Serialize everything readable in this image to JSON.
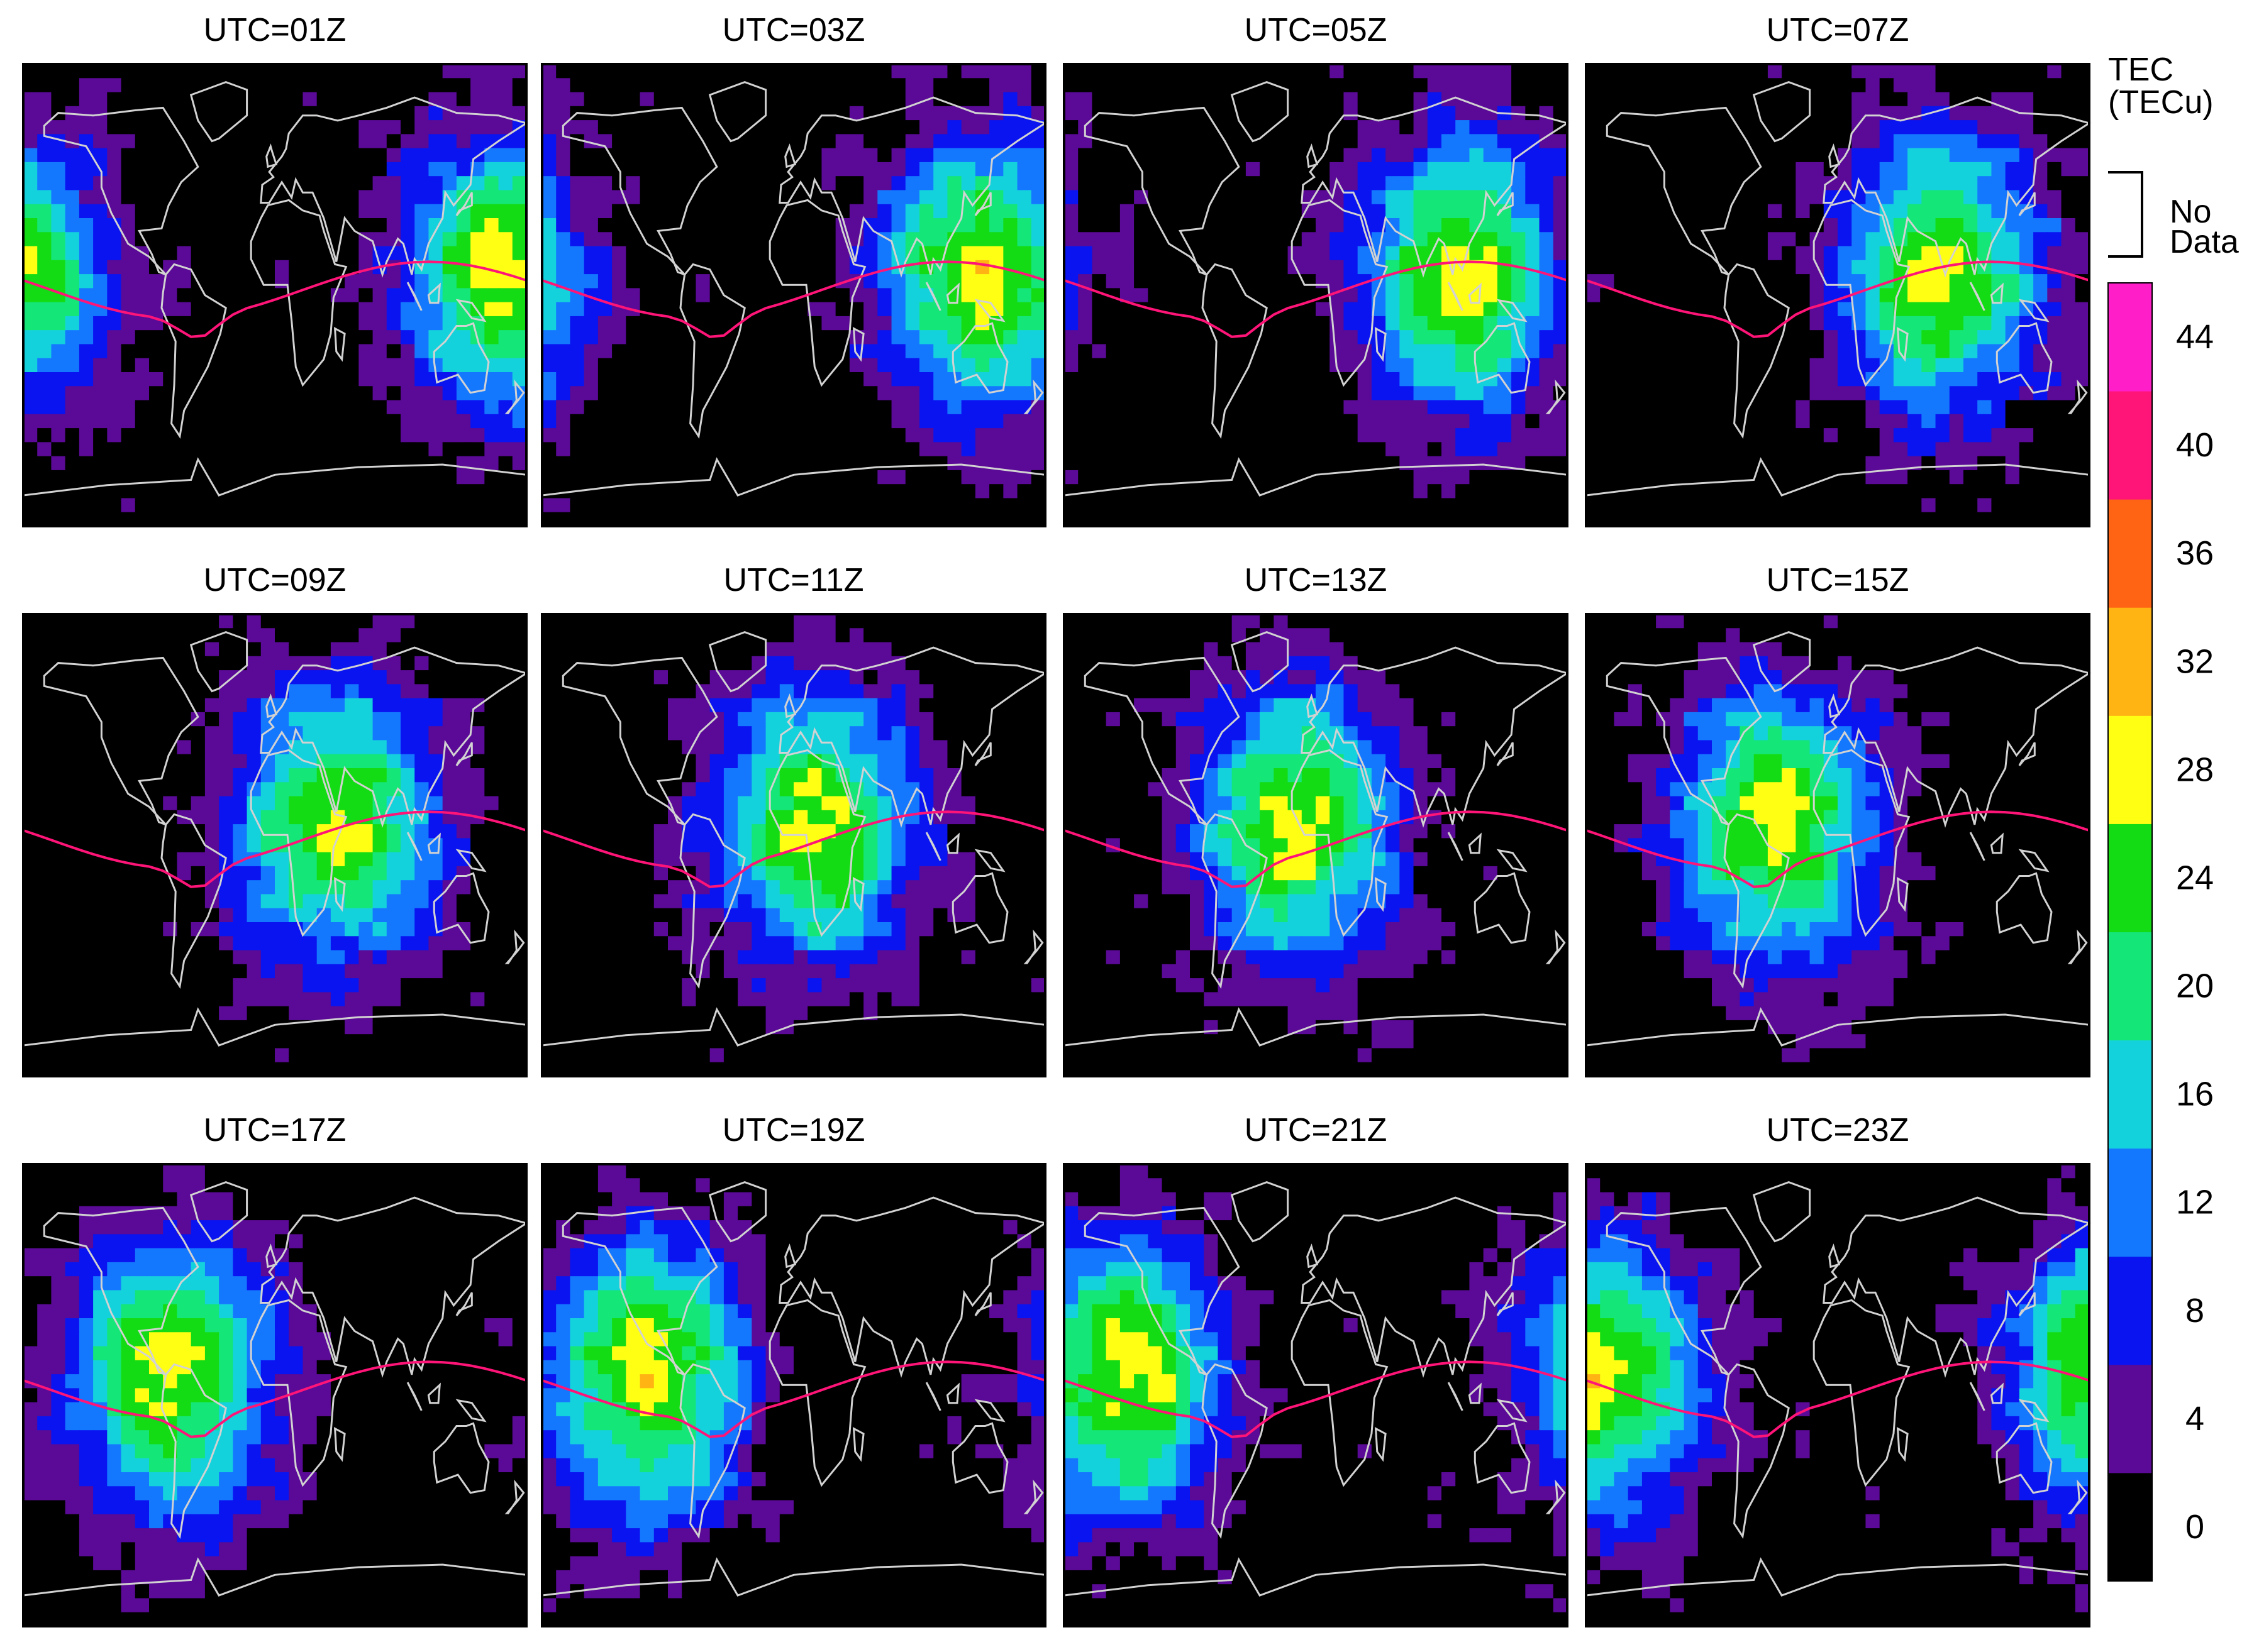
{
  "chart_data": {
    "type": "heatmap",
    "panels": [
      {
        "title": "UTC=01Z",
        "peak_lon": 165
      },
      {
        "title": "UTC=03Z",
        "peak_lon": 135
      },
      {
        "title": "UTC=05Z",
        "peak_lon": 105
      },
      {
        "title": "UTC=07Z",
        "peak_lon": 75
      },
      {
        "title": "UTC=09Z",
        "peak_lon": 45
      },
      {
        "title": "UTC=11Z",
        "peak_lon": 15
      },
      {
        "title": "UTC=13Z",
        "peak_lon": -15
      },
      {
        "title": "UTC=15Z",
        "peak_lon": -45
      },
      {
        "title": "UTC=17Z",
        "peak_lon": -75
      },
      {
        "title": "UTC=19Z",
        "peak_lon": -105
      },
      {
        "title": "UTC=21Z",
        "peak_lon": -135
      },
      {
        "title": "UTC=23Z",
        "peak_lon": -165
      }
    ],
    "colorbar": {
      "title_line1": "TEC",
      "title_line2": "(TECu)",
      "no_data_line1": "No",
      "no_data_line2": "Data",
      "tick_labels": [
        "44",
        "40",
        "36",
        "32",
        "28",
        "24",
        "20",
        "16",
        "12",
        "8",
        "4",
        "0"
      ],
      "levels": [
        0,
        4,
        8,
        12,
        16,
        20,
        24,
        28,
        32,
        36,
        40,
        44,
        48
      ],
      "colors": [
        "#000000",
        "#5a0a96",
        "#0a14f0",
        "#1478ff",
        "#14d2dc",
        "#14e678",
        "#14dc14",
        "#ffff14",
        "#ffb414",
        "#ff6414",
        "#ff1478",
        "#ff1ec8"
      ]
    },
    "peak_tec": 30,
    "lon_range": [
      -180,
      180
    ],
    "lat_range": [
      -90,
      90
    ]
  }
}
